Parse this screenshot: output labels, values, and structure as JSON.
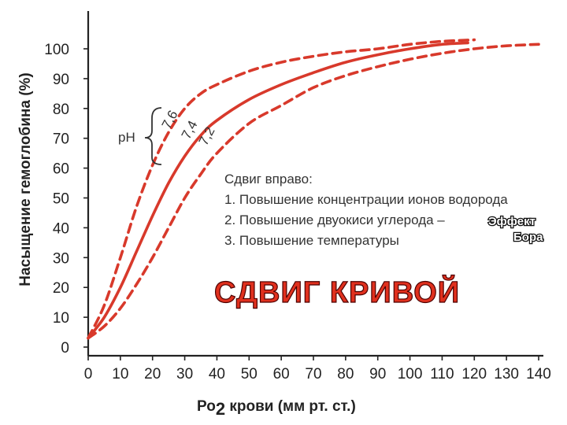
{
  "chart_data": {
    "type": "line",
    "title": "СДВИГ КРИВОЙ",
    "xlabel_pre": "Ро",
    "xlabel_sub": "2",
    "xlabel_post": " крови (мм рт. ст.)",
    "ylabel": "Насыщение гемоглобина (%)",
    "xlim": [
      0,
      140
    ],
    "ylim": [
      0,
      100
    ],
    "xticks": [
      "0",
      "10",
      "20",
      "30",
      "40",
      "50",
      "60",
      "70",
      "80",
      "90",
      "100",
      "110",
      "120",
      "130",
      "140"
    ],
    "yticks": [
      "0",
      "10",
      "20",
      "30",
      "40",
      "50",
      "60",
      "70",
      "80",
      "90",
      "100"
    ],
    "ph_label": "pH",
    "series": [
      {
        "name": "7,6",
        "style": "dashed",
        "points": [
          [
            0,
            3
          ],
          [
            5,
            14
          ],
          [
            10,
            30
          ],
          [
            15,
            47
          ],
          [
            20,
            61
          ],
          [
            25,
            72
          ],
          [
            30,
            80
          ],
          [
            35,
            85
          ],
          [
            40,
            88
          ],
          [
            50,
            92.5
          ],
          [
            60,
            95.5
          ],
          [
            70,
            97.5
          ],
          [
            80,
            99
          ],
          [
            90,
            100
          ],
          [
            100,
            101.5
          ],
          [
            110,
            102.5
          ],
          [
            120,
            103
          ]
        ]
      },
      {
        "name": "7,4",
        "style": "solid",
        "points": [
          [
            0,
            3
          ],
          [
            5,
            10
          ],
          [
            10,
            20
          ],
          [
            15,
            32
          ],
          [
            20,
            44
          ],
          [
            25,
            55
          ],
          [
            30,
            64
          ],
          [
            35,
            71
          ],
          [
            40,
            76
          ],
          [
            50,
            83
          ],
          [
            60,
            88
          ],
          [
            70,
            92
          ],
          [
            80,
            95.5
          ],
          [
            90,
            98
          ],
          [
            100,
            100
          ],
          [
            110,
            101.5
          ],
          [
            118,
            102
          ]
        ]
      },
      {
        "name": "7,2",
        "style": "dashed",
        "points": [
          [
            0,
            3
          ],
          [
            5,
            7
          ],
          [
            10,
            13
          ],
          [
            15,
            21
          ],
          [
            20,
            30
          ],
          [
            25,
            40
          ],
          [
            30,
            50
          ],
          [
            35,
            58
          ],
          [
            40,
            65
          ],
          [
            50,
            75
          ],
          [
            60,
            81
          ],
          [
            70,
            87
          ],
          [
            80,
            91
          ],
          [
            90,
            94
          ],
          [
            100,
            96.5
          ],
          [
            110,
            98.5
          ],
          [
            120,
            100
          ],
          [
            130,
            101
          ],
          [
            140,
            101.5
          ]
        ]
      }
    ],
    "annotation": {
      "heading": "Сдвиг вправо:",
      "lines": [
        "1. Повышение концентрации ионов водорода",
        "2. Повышение двуокиси углерода –",
        "3. Повышение температуры"
      ],
      "highlight_1": "Эффект",
      "highlight_2": "Бора"
    },
    "colors": {
      "curve": "#d8392b",
      "axis": "#222222",
      "title": "#e0301e"
    }
  }
}
